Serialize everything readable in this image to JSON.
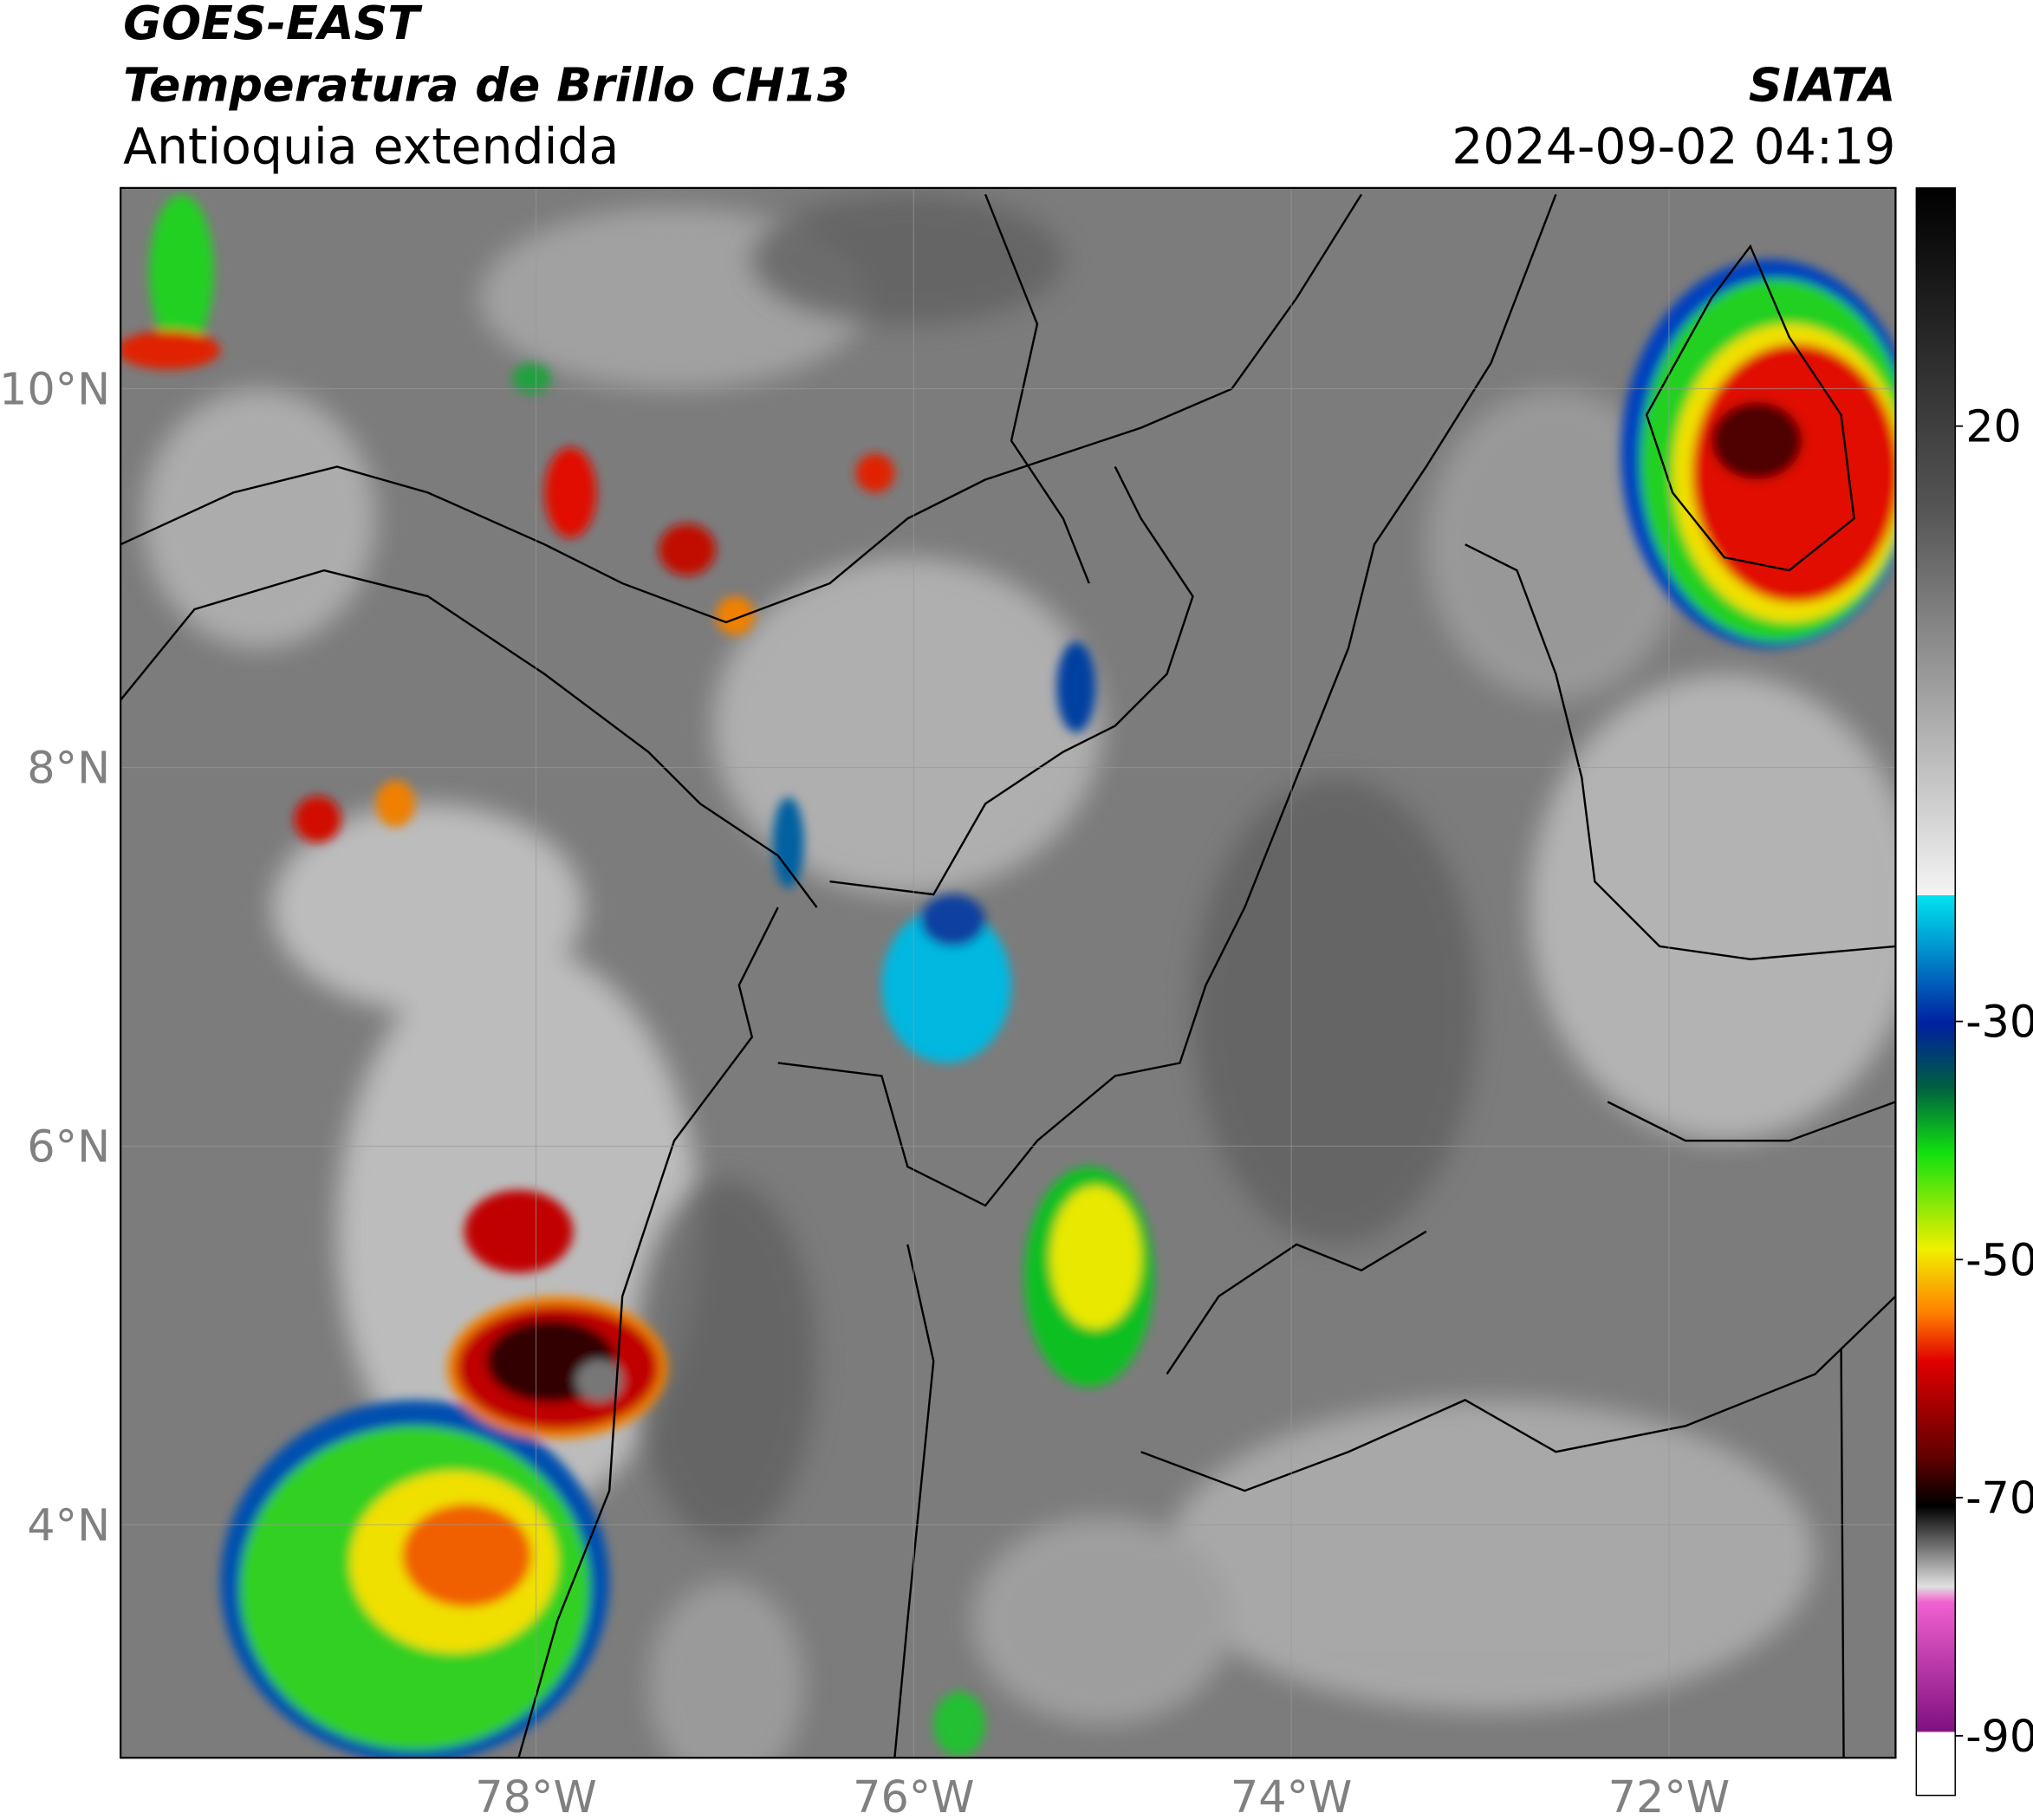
{
  "header": {
    "satellite": "GOES-EAST",
    "product": "Temperatura de Brillo CH13",
    "region": "Antioquia extendida",
    "source": "SIATA",
    "datetime": "2024-09-02 04:19"
  },
  "map": {
    "lonlim": [
      -80.2,
      -70.8
    ],
    "latlim": [
      2.77,
      11.06
    ],
    "lonticks": [
      {
        "value": -78,
        "label": "78°W"
      },
      {
        "value": -76,
        "label": "76°W"
      },
      {
        "value": -74,
        "label": "74°W"
      },
      {
        "value": -72,
        "label": "72°W"
      }
    ],
    "latticks": [
      {
        "value": 4,
        "label": "4°N"
      },
      {
        "value": 6,
        "label": "6°N"
      },
      {
        "value": 8,
        "label": "8°N"
      },
      {
        "value": 10,
        "label": "10°N"
      }
    ]
  },
  "colorbar": {
    "lim": [
      -95,
      40
    ],
    "ticks": [
      -90,
      -70,
      -50,
      -30,
      20
    ]
  }
}
